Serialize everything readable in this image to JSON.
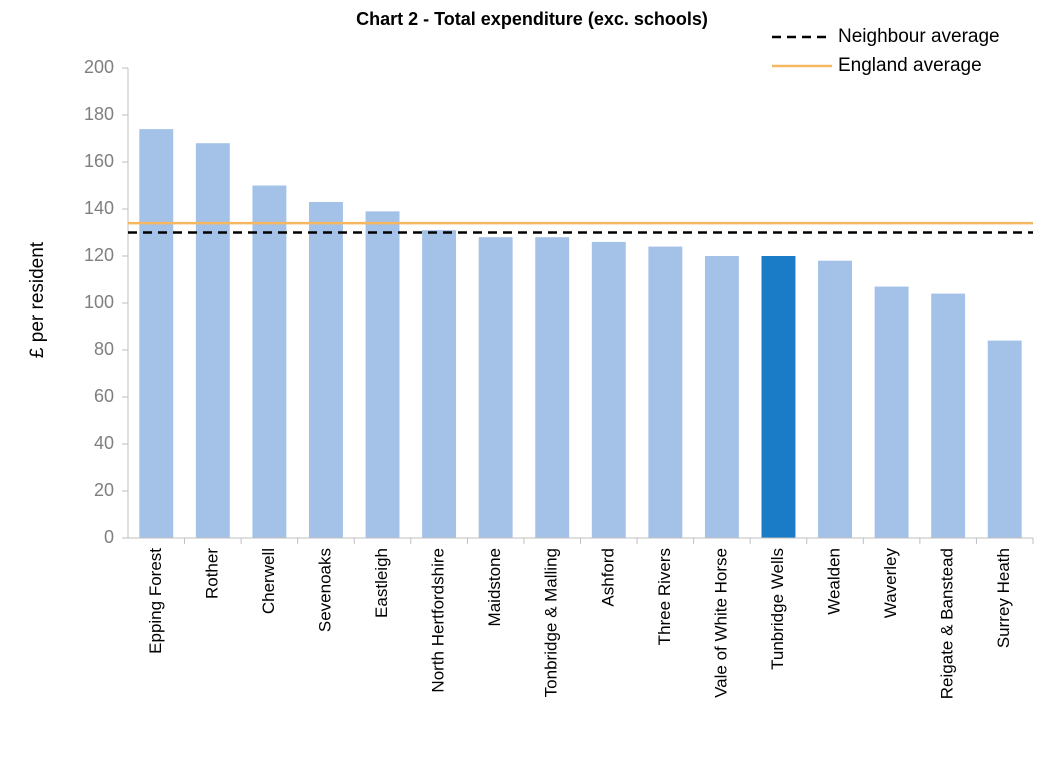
{
  "chart_data": {
    "type": "bar",
    "title": "Chart 2 - Total expenditure (exc. schools)",
    "y_label": "£ per resident",
    "categories": [
      "Epping Forest",
      "Rother",
      "Cherwell",
      "Sevenoaks",
      "Eastleigh",
      "North Hertfordshire",
      "Maidstone",
      "Tonbridge & Malling",
      "Ashford",
      "Three Rivers",
      "Vale of White Horse",
      "Tunbridge Wells",
      "Wealden",
      "Waverley",
      "Reigate & Banstead",
      "Surrey Heath"
    ],
    "values": [
      174,
      168,
      150,
      143,
      139,
      131,
      128,
      128,
      126,
      124,
      120,
      120,
      118,
      107,
      104,
      84
    ],
    "colors": [
      "#a4c2e8",
      "#a4c2e8",
      "#a4c2e8",
      "#a4c2e8",
      "#a4c2e8",
      "#a4c2e8",
      "#a4c2e8",
      "#a4c2e8",
      "#a4c2e8",
      "#a4c2e8",
      "#a4c2e8",
      "#1a7bc6",
      "#a4c2e8",
      "#a4c2e8",
      "#a4c2e8",
      "#a4c2e8"
    ],
    "reference_lines": [
      {
        "name": "Neighbour average",
        "value": 130,
        "color": "#000000",
        "style": "dashed"
      },
      {
        "name": "England average",
        "value": 134,
        "color": "#f5b860",
        "style": "solid"
      }
    ],
    "legend": "upper right",
    "ylim": [
      0,
      200
    ],
    "yticks": [
      0,
      20,
      40,
      60,
      80,
      100,
      120,
      140,
      160,
      180,
      200
    ],
    "grid": false
  }
}
